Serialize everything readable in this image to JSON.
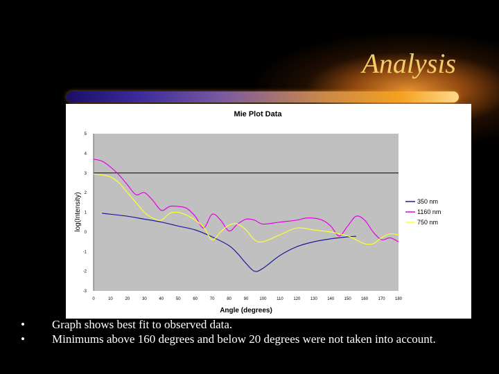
{
  "slide": {
    "title": "Analysis",
    "bullets": [
      "Graph shows best fit to observed data.",
      "Minimums above 160 degrees and below 20 degrees were not taken into account."
    ]
  },
  "colors": {
    "title": "#f2cc6b",
    "plot_bg": "#c0c0c0",
    "series_350": "#1a1aa0",
    "series_1160": "#e600e6",
    "series_750": "#ffff33"
  },
  "chart_data": {
    "type": "line",
    "title": "Mie Plot Data",
    "xlabel": "Angle (degrees)",
    "ylabel": "log(Intensity)",
    "xlim": [
      0,
      180
    ],
    "ylim": [
      -3,
      5
    ],
    "x_ticks": [
      "0",
      "10",
      "20",
      "30",
      "40",
      "50",
      "60",
      "70",
      "80",
      "90",
      "100",
      "110",
      "120",
      "130",
      "140",
      "150",
      "160",
      "170",
      "180"
    ],
    "y_ticks": [
      "-3",
      "-2",
      "-1",
      "0",
      "1",
      "2",
      "3",
      "4",
      "5"
    ],
    "reference_line": 3,
    "legend_position": "right",
    "series": [
      {
        "name": "350 nm",
        "color": "#1a1aa0",
        "x": [
          5,
          10,
          20,
          30,
          40,
          50,
          60,
          70,
          80,
          85,
          90,
          95,
          100,
          110,
          120,
          130,
          140,
          150,
          155
        ],
        "y": [
          0.95,
          0.9,
          0.8,
          0.65,
          0.5,
          0.3,
          0.1,
          -0.25,
          -0.7,
          -1.1,
          -1.6,
          -2.0,
          -1.85,
          -1.2,
          -0.75,
          -0.5,
          -0.35,
          -0.25,
          -0.22
        ]
      },
      {
        "name": "1160 nm",
        "color": "#e600e6",
        "x": [
          0,
          5,
          10,
          15,
          20,
          25,
          30,
          35,
          40,
          45,
          50,
          55,
          60,
          65,
          70,
          75,
          80,
          85,
          90,
          95,
          100,
          110,
          120,
          125,
          130,
          135,
          140,
          145,
          150,
          155,
          160,
          165,
          170,
          175,
          180
        ],
        "y": [
          3.7,
          3.6,
          3.3,
          2.9,
          2.4,
          1.9,
          2.0,
          1.6,
          1.1,
          1.3,
          1.3,
          1.2,
          0.8,
          0.2,
          0.9,
          0.6,
          0.05,
          0.4,
          0.65,
          0.6,
          0.4,
          0.5,
          0.6,
          0.7,
          0.7,
          0.6,
          0.3,
          -0.2,
          0.3,
          0.8,
          0.6,
          0.0,
          -0.4,
          -0.3,
          -0.5
        ]
      },
      {
        "name": "750 nm",
        "color": "#ffff33",
        "x": [
          0,
          5,
          10,
          15,
          20,
          25,
          30,
          35,
          40,
          45,
          50,
          55,
          60,
          65,
          70,
          75,
          80,
          85,
          90,
          95,
          100,
          110,
          120,
          130,
          140,
          145,
          150,
          155,
          160,
          165,
          170,
          175,
          180
        ],
        "y": [
          2.95,
          2.9,
          2.8,
          2.5,
          2.0,
          1.5,
          1.0,
          0.7,
          0.6,
          0.95,
          1.0,
          0.85,
          0.6,
          0.25,
          -0.4,
          0.0,
          0.35,
          0.4,
          0.1,
          -0.4,
          -0.5,
          -0.15,
          0.2,
          0.1,
          0.0,
          -0.1,
          -0.2,
          -0.4,
          -0.6,
          -0.6,
          -0.3,
          -0.1,
          -0.15
        ]
      }
    ]
  }
}
